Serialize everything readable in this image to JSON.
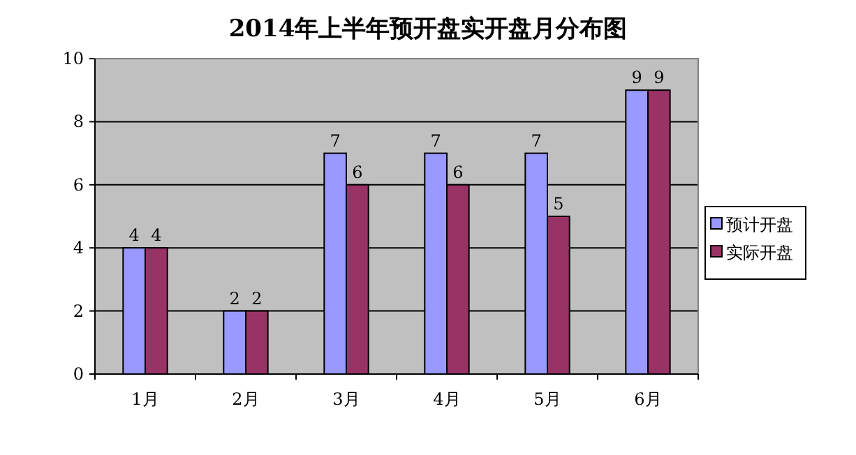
{
  "chart_data": {
    "type": "bar",
    "title": "2014年上半年预开盘实开盘月分布图",
    "categories": [
      "1月",
      "2月",
      "3月",
      "4月",
      "5月",
      "6月"
    ],
    "series": [
      {
        "name": "预计开盘",
        "color": "#9999ff",
        "values": [
          4,
          2,
          7,
          7,
          7,
          9
        ]
      },
      {
        "name": "实际开盘",
        "color": "#993366",
        "values": [
          4,
          2,
          6,
          6,
          5,
          9
        ]
      }
    ],
    "ylim": [
      0,
      10
    ],
    "yticks": [
      0,
      2,
      4,
      6,
      8,
      10
    ],
    "grid": "y",
    "legend": "right",
    "data_labels": true
  }
}
